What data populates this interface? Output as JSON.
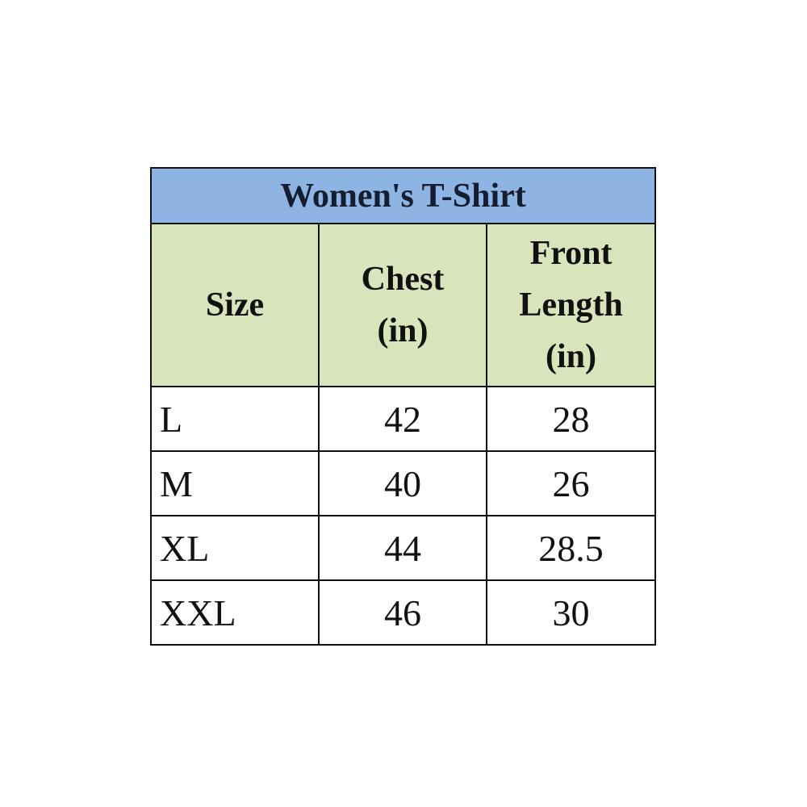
{
  "table": {
    "title": "Women's T-Shirt",
    "headers": [
      "Size",
      "Chest (in)",
      "Front Length (in)"
    ],
    "rows": [
      [
        "L",
        "42",
        "28"
      ],
      [
        "M",
        "40",
        "26"
      ],
      [
        "XL",
        "44",
        "28.5"
      ],
      [
        "XXL",
        "46",
        "30"
      ]
    ]
  },
  "colors": {
    "title_bg": "#8db4e2",
    "header_bg": "#d8e4bc"
  }
}
